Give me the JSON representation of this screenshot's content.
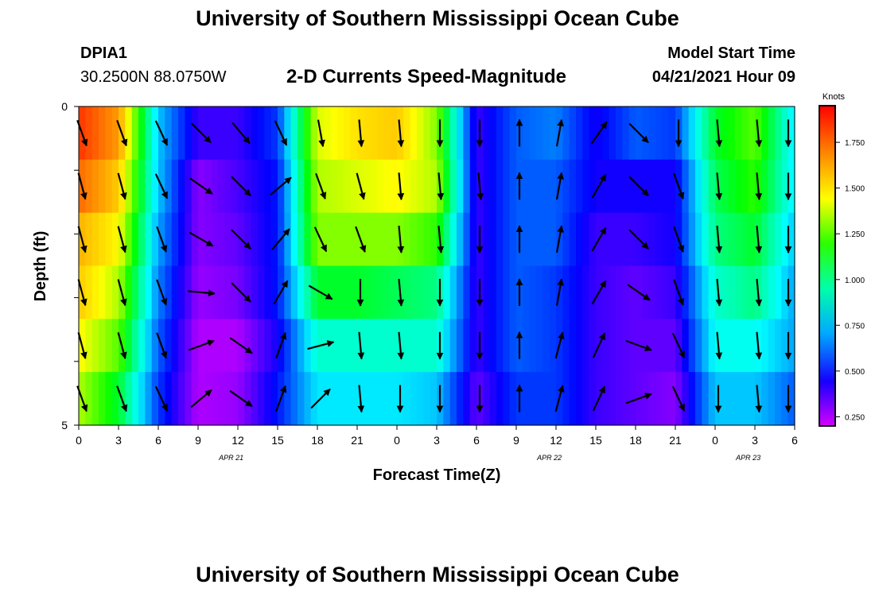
{
  "header": {
    "title": "University of Southern Mississippi Ocean Cube",
    "station": "DPIA1",
    "coords": "30.2500N  88.0750W",
    "subtitle": "2-D Currents Speed-Magnitude",
    "model_start_label": "Model Start Time",
    "model_start_value": "04/21/2021 Hour 09"
  },
  "footer": {
    "title": "University of Southern Mississippi Ocean Cube"
  },
  "chart_data": {
    "type": "heatmap",
    "title": "2-D Currents Speed-Magnitude",
    "xlabel": "Forecast Time(Z)",
    "ylabel": "Depth (ft)",
    "x_range_hours": [
      0,
      54
    ],
    "y_range_ft": [
      0,
      5
    ],
    "x_tick_labels": [
      "0",
      "3",
      "6",
      "9",
      "12",
      "15",
      "18",
      "21",
      "0",
      "3",
      "6",
      "9",
      "12",
      "15",
      "18",
      "21",
      "0",
      "3",
      "6"
    ],
    "y_tick_labels": [
      "0",
      "5"
    ],
    "date_labels": [
      {
        "text": "APR  21",
        "hour": 11.5
      },
      {
        "text": "APR  22",
        "hour": 35.5
      },
      {
        "text": "APR  23",
        "hour": 50.5
      }
    ],
    "colorbar": {
      "unit": "Knots",
      "range": [
        0.2,
        1.95
      ],
      "ticks": [
        "0.250",
        "0.500",
        "0.750",
        "1.000",
        "1.250",
        "1.500",
        "1.750"
      ],
      "tick_values": [
        0.25,
        0.5,
        0.75,
        1.0,
        1.25,
        1.5,
        1.75
      ]
    },
    "time_hours": [
      0,
      3,
      6,
      9,
      12,
      15,
      18,
      21,
      24,
      27,
      30,
      33,
      36,
      39,
      42,
      45,
      48,
      51,
      54
    ],
    "depth_ft": [
      0,
      1,
      2,
      3,
      4,
      5
    ],
    "speed_knots": [
      [
        1.85,
        1.65,
        0.75,
        0.4,
        0.4,
        0.55,
        1.4,
        1.5,
        1.55,
        1.3,
        0.4,
        0.6,
        0.65,
        0.45,
        0.6,
        0.55,
        1.1,
        1.25,
        0.8
      ],
      [
        1.75,
        1.55,
        0.75,
        0.3,
        0.38,
        0.5,
        1.35,
        1.4,
        1.45,
        1.35,
        0.4,
        0.6,
        0.6,
        0.45,
        0.45,
        0.45,
        1.05,
        1.2,
        0.8
      ],
      [
        1.6,
        1.45,
        0.7,
        0.3,
        0.35,
        0.5,
        1.3,
        1.3,
        1.3,
        1.2,
        0.4,
        0.6,
        0.6,
        0.4,
        0.4,
        0.45,
        1.0,
        1.1,
        0.75
      ],
      [
        1.55,
        1.35,
        0.65,
        0.28,
        0.32,
        0.5,
        1.1,
        1.1,
        1.05,
        1.0,
        0.4,
        0.6,
        0.55,
        0.4,
        0.35,
        0.4,
        0.9,
        1.0,
        0.7
      ],
      [
        1.45,
        1.25,
        0.6,
        0.25,
        0.25,
        0.45,
        0.9,
        0.9,
        0.9,
        0.9,
        0.4,
        0.6,
        0.55,
        0.4,
        0.35,
        0.35,
        0.85,
        0.85,
        0.7
      ],
      [
        1.35,
        1.1,
        0.55,
        0.25,
        0.28,
        0.5,
        0.8,
        0.8,
        0.8,
        0.75,
        0.35,
        0.55,
        0.55,
        0.4,
        0.35,
        0.3,
        0.75,
        0.75,
        0.6
      ]
    ],
    "arrow_direction_deg": [
      [
        160,
        160,
        155,
        135,
        140,
        155,
        170,
        175,
        175,
        180,
        180,
        0,
        10,
        35,
        135,
        180,
        175,
        175,
        180
      ],
      [
        165,
        165,
        155,
        125,
        135,
        50,
        160,
        165,
        175,
        175,
        175,
        0,
        10,
        30,
        135,
        160,
        175,
        175,
        180
      ],
      [
        165,
        165,
        160,
        120,
        135,
        40,
        155,
        160,
        175,
        175,
        180,
        0,
        10,
        30,
        135,
        160,
        175,
        175,
        180
      ],
      [
        165,
        165,
        160,
        95,
        135,
        30,
        120,
        180,
        175,
        180,
        180,
        0,
        10,
        30,
        125,
        160,
        175,
        175,
        180
      ],
      [
        165,
        165,
        160,
        70,
        125,
        20,
        75,
        175,
        175,
        180,
        180,
        0,
        15,
        25,
        110,
        155,
        175,
        175,
        180
      ],
      [
        160,
        160,
        155,
        50,
        125,
        20,
        45,
        175,
        180,
        180,
        180,
        0,
        15,
        25,
        70,
        155,
        180,
        175,
        180
      ]
    ]
  }
}
